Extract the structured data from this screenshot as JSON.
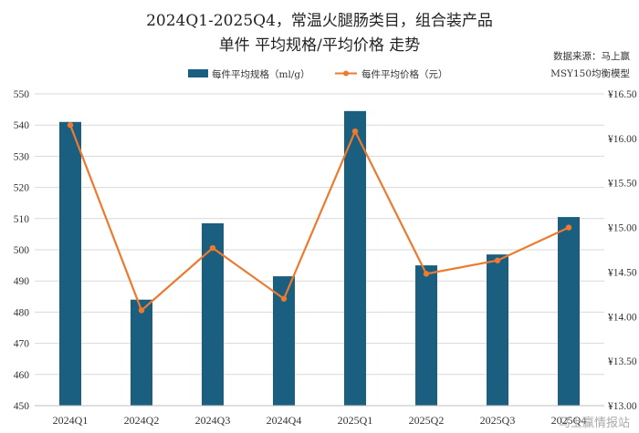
{
  "chart_data": {
    "type": "bar+line",
    "title_line1": "2024Q1-2025Q4，常温火腿肠类目，组合装产品",
    "title_line2": "单件 平均规格/平均价格 走势",
    "source_line1": "数据来源：马上赢",
    "source_line2": "MSY150均衡模型",
    "watermark": "马上赢情报站",
    "categories": [
      "2024Q1",
      "2024Q2",
      "2024Q3",
      "2024Q4",
      "2025Q1",
      "2025Q2",
      "2025Q3",
      "2025Q4"
    ],
    "series": [
      {
        "name": "每件平均规格（ml/g）",
        "type": "bar",
        "axis": "left",
        "values": [
          541,
          484,
          508.5,
          491.5,
          544.5,
          495,
          498.5,
          510.5
        ]
      },
      {
        "name": "每件平均价格（元）",
        "type": "line",
        "axis": "right",
        "values": [
          16.15,
          14.07,
          14.77,
          14.2,
          16.08,
          14.48,
          14.63,
          15.0
        ]
      }
    ],
    "y_left": {
      "min": 450,
      "max": 550,
      "step": 10
    },
    "y_right": {
      "min": 13.0,
      "max": 16.5,
      "step": 0.5,
      "prefix": "¥"
    },
    "colors": {
      "bar": "#1a5e80",
      "line": "#ec7a2f",
      "grid": "#d9d9d9"
    },
    "grid": true,
    "legend_position": "top"
  }
}
